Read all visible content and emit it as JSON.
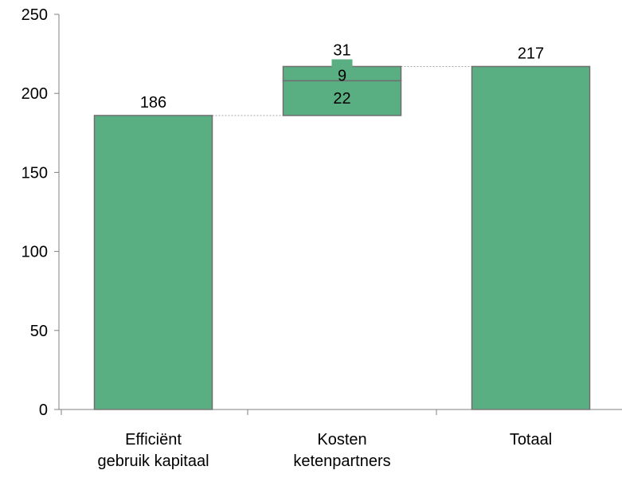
{
  "chart_data": {
    "type": "bar",
    "subtype": "waterfall",
    "ylim": [
      0,
      250
    ],
    "yticks": [
      0,
      50,
      100,
      150,
      200,
      250
    ],
    "ytick_labels": [
      "0",
      "50",
      "100",
      "150",
      "200",
      "250"
    ],
    "grid": false,
    "bar_color": "#5aaf82",
    "bar_edge_color": "#6e6e6e",
    "connector_color": "#a6a6a6",
    "categories": [
      {
        "label_lines": [
          "Efficiënt",
          "gebruik kapitaal"
        ]
      },
      {
        "label_lines": [
          "Kosten",
          "ketenpartners"
        ]
      },
      {
        "label_lines": [
          "Totaal"
        ]
      }
    ],
    "bars": [
      {
        "category": 0,
        "kind": "total",
        "value": 186,
        "label": "186"
      },
      {
        "category": 1,
        "kind": "increment",
        "base": 186,
        "segments": [
          {
            "value": 22,
            "label": "22"
          },
          {
            "value": 9,
            "label": "9"
          }
        ],
        "total_label": "31"
      },
      {
        "category": 2,
        "kind": "total",
        "value": 217,
        "label": "217"
      }
    ]
  }
}
